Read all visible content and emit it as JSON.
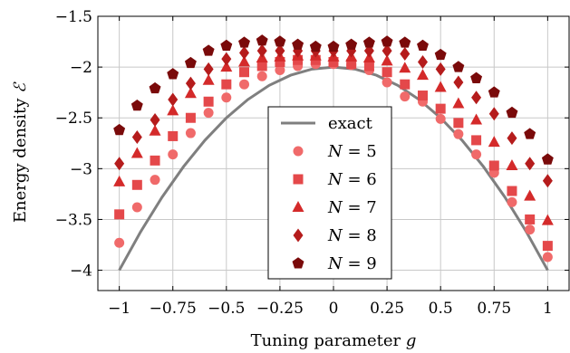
{
  "chart_data": {
    "type": "scatter",
    "xlabel": "Tuning parameter g",
    "xlabel_text": "Tuning parameter",
    "xlabel_symbol": "g",
    "ylabel": "Energy density ℰ",
    "ylabel_text": "Energy density",
    "ylabel_symbol": "ℰ",
    "xlim": [
      -1.1,
      1.1
    ],
    "ylim": [
      -4.2,
      -1.5
    ],
    "xticks": [
      -1,
      -0.75,
      -0.5,
      -0.25,
      0,
      0.25,
      0.5,
      0.75,
      1
    ],
    "xtick_labels": [
      "−1",
      "−0.75",
      "−0.5",
      "−0.25",
      "0",
      "0.25",
      "0.5",
      "0.75",
      "1"
    ],
    "yticks": [
      -4,
      -3.5,
      -3,
      -2.5,
      -2,
      -1.5
    ],
    "ytick_labels": [
      "−4",
      "−3.5",
      "−3",
      "−2.5",
      "−2",
      "−1.5"
    ],
    "grid": true,
    "legend_position": "bottom-center",
    "x": [
      -1.0,
      -0.9167,
      -0.8333,
      -0.75,
      -0.6667,
      -0.5833,
      -0.5,
      -0.4167,
      -0.3333,
      -0.25,
      -0.1667,
      -0.0833,
      0.0,
      0.0833,
      0.1667,
      0.25,
      0.3333,
      0.4167,
      0.5,
      0.5833,
      0.6667,
      0.75,
      0.8333,
      0.9167,
      1.0
    ],
    "exact": {
      "name": "exact",
      "color": "#7f7f7f",
      "x": [
        -1.0,
        -0.9,
        -0.8,
        -0.7,
        -0.6,
        -0.5,
        -0.4,
        -0.3,
        -0.2,
        -0.1,
        0.0,
        0.1,
        0.2,
        0.3,
        0.4,
        0.5,
        0.6,
        0.7,
        0.8,
        0.9,
        1.0
      ],
      "y": [
        -4.0,
        -3.62,
        -3.28,
        -2.98,
        -2.72,
        -2.5,
        -2.32,
        -2.18,
        -2.08,
        -2.02,
        -2.0,
        -2.02,
        -2.08,
        -2.18,
        -2.32,
        -2.5,
        -2.72,
        -2.98,
        -3.28,
        -3.62,
        -4.0
      ]
    },
    "series": [
      {
        "name": "N = 5",
        "label": "N",
        "value_label": "= 5",
        "marker": "circle",
        "color": "#f06a6a",
        "values": [
          -3.73,
          -3.38,
          -3.11,
          -2.86,
          -2.65,
          -2.45,
          -2.3,
          -2.17,
          -2.09,
          -2.03,
          -1.99,
          -1.97,
          -1.97,
          -1.98,
          -2.03,
          -2.15,
          -2.29,
          -2.34,
          -2.51,
          -2.66,
          -2.86,
          -3.04,
          -3.33,
          -3.6,
          -3.87
        ]
      },
      {
        "name": "N = 6",
        "label": "N",
        "value_label": "= 6",
        "marker": "square",
        "color": "#e4484a",
        "values": [
          -3.45,
          -3.16,
          -2.92,
          -2.68,
          -2.5,
          -2.34,
          -2.17,
          -2.05,
          -1.99,
          -1.95,
          -1.93,
          -1.93,
          -1.95,
          -1.97,
          -1.99,
          -2.05,
          -2.17,
          -2.28,
          -2.41,
          -2.55,
          -2.72,
          -2.97,
          -3.22,
          -3.5,
          -3.76
        ]
      },
      {
        "name": "N = 7",
        "label": "N",
        "value_label": "= 7",
        "marker": "triangle",
        "color": "#d42a2a",
        "values": [
          -3.13,
          -2.85,
          -2.63,
          -2.43,
          -2.26,
          -2.13,
          -2.0,
          -1.95,
          -1.91,
          -1.9,
          -1.89,
          -1.89,
          -1.9,
          -1.9,
          -1.91,
          -1.94,
          -2.01,
          -2.08,
          -2.2,
          -2.36,
          -2.52,
          -2.74,
          -2.97,
          -3.27,
          -3.51
        ]
      },
      {
        "name": "N = 8",
        "label": "N",
        "value_label": "= 8",
        "marker": "diamond",
        "color": "#b51c1c",
        "values": [
          -2.95,
          -2.69,
          -2.52,
          -2.32,
          -2.16,
          -2.02,
          -1.92,
          -1.86,
          -1.84,
          -1.84,
          -1.84,
          -1.84,
          -1.84,
          -1.84,
          -1.84,
          -1.84,
          -1.87,
          -1.95,
          -2.02,
          -2.15,
          -2.3,
          -2.46,
          -2.7,
          -2.95,
          -3.12
        ]
      },
      {
        "name": "N = 9",
        "label": "N",
        "value_label": "= 9",
        "marker": "pentagon",
        "color": "#7a0a0a",
        "values": [
          -2.62,
          -2.38,
          -2.21,
          -2.07,
          -1.96,
          -1.84,
          -1.79,
          -1.76,
          -1.74,
          -1.75,
          -1.78,
          -1.8,
          -1.8,
          -1.78,
          -1.76,
          -1.75,
          -1.76,
          -1.79,
          -1.88,
          -2.0,
          -2.11,
          -2.25,
          -2.45,
          -2.66,
          -2.91
        ]
      }
    ]
  }
}
